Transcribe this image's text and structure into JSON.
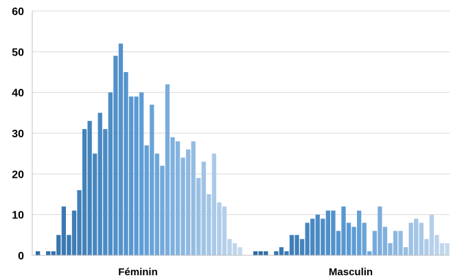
{
  "chart_data": {
    "type": "bar",
    "title": "",
    "xlabel": "",
    "ylabel": "",
    "ylim": [
      0,
      60
    ],
    "yticks": [
      0,
      10,
      20,
      30,
      40,
      50,
      60
    ],
    "grid": true,
    "legend": "none",
    "categories": [
      "Féminin",
      "Masculin"
    ],
    "groups": [
      {
        "name": "Féminin",
        "values": [
          1,
          0,
          1,
          1,
          5,
          12,
          5,
          11,
          16,
          31,
          33,
          25,
          35,
          31,
          40,
          49,
          52,
          45,
          39,
          39,
          40,
          27,
          37,
          25,
          22,
          42,
          29,
          28,
          24,
          26,
          28,
          19,
          23,
          15,
          25,
          13,
          12,
          4,
          3,
          2
        ]
      },
      {
        "name": "Masculin",
        "values": [
          1,
          1,
          1,
          0,
          1,
          2,
          1,
          5,
          5,
          4,
          8,
          9,
          10,
          9,
          11,
          11,
          6,
          12,
          8,
          7,
          11,
          8,
          1,
          6,
          12,
          7,
          3,
          6,
          6,
          2,
          8,
          9,
          8,
          4,
          10,
          5,
          3,
          3
        ]
      }
    ],
    "colors": {
      "dark": "#2e6ca4",
      "mid": "#5b9bd5",
      "light": "#c5d9ee"
    }
  }
}
